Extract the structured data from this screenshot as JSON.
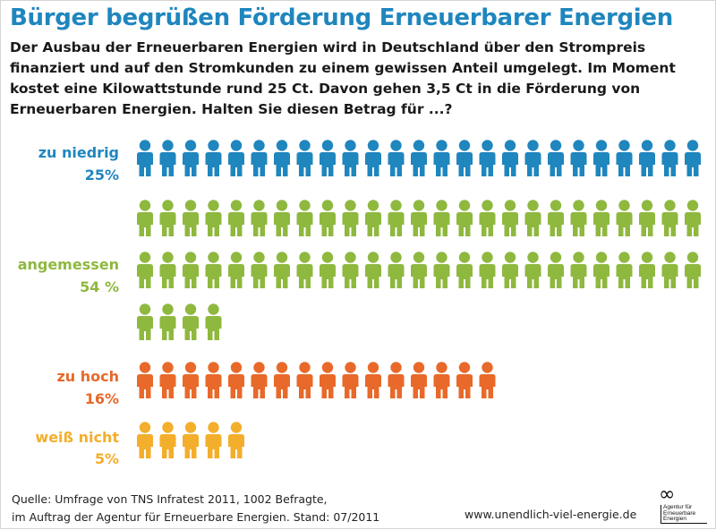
{
  "title": "Bürger begrüßen Förderung Erneuerbarer Energien",
  "question": "Der Ausbau der Erneuerbaren Energien wird in Deutschland über den Strompreis finanziert und auf den Stromkunden zu einem gewissen Anteil umgelegt. Im Moment kostet eine Kilowattstunde rund 25 Ct. Davon gehen 3,5 Ct in die Förderung von Erneuerbaren Energien. Halten Sie diesen Betrag für ...?",
  "chart_data": {
    "type": "bar",
    "categories": [
      "zu niedrig",
      "angemessen",
      "zu hoch",
      "weiß nicht"
    ],
    "value_labels": [
      "25%",
      "54 %",
      "16%",
      "5%"
    ],
    "values": [
      25,
      54,
      16,
      5
    ],
    "unit": "%",
    "one_icon_equals_percent": 1,
    "icons_per_row": 25,
    "colors": [
      "#1f86be",
      "#8fb83f",
      "#e8692a",
      "#f3ae2b"
    ]
  },
  "footer": {
    "source_line1": "Quelle: Umfrage von TNS Infratest 2011, 1002 Befragte,",
    "source_line2": "im Auftrag der Agentur für Erneuerbare Energien. Stand: 07/2011",
    "website": "www.unendlich-viel-energie.de",
    "logo_mark": "∞",
    "logo_text_1": "Agentur für",
    "logo_text_2": "Erneuerbare",
    "logo_text_3": "Energien"
  }
}
